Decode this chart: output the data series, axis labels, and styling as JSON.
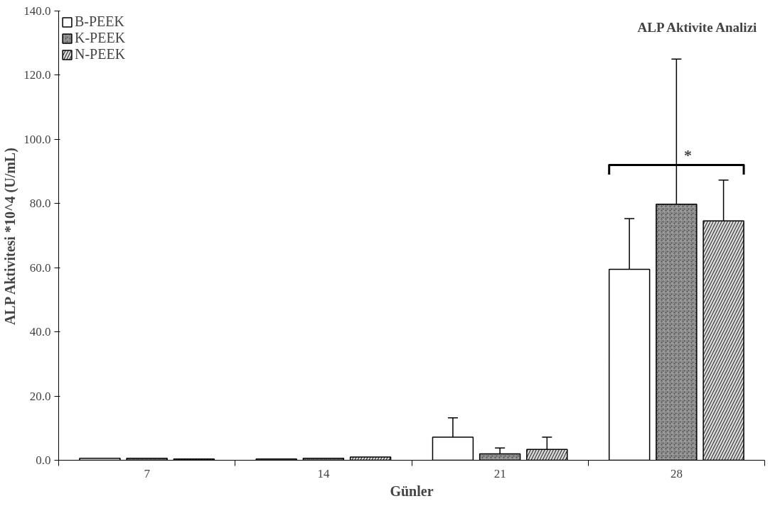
{
  "chart_data": {
    "type": "bar",
    "title": "ALP Aktivite Analizi",
    "xlabel": "Günler",
    "ylabel": "ALP Aktivitesi *10^4 (U/mL)",
    "categories": [
      "7",
      "14",
      "21",
      "28"
    ],
    "series": [
      {
        "name": "B-PEEK",
        "color": "#ffffff",
        "values": [
          0.6,
          0.4,
          7.2,
          59.5
        ],
        "errors": [
          null,
          null,
          6.0,
          15.8
        ]
      },
      {
        "name": "K-PEEK",
        "color": "#444444",
        "values": [
          0.6,
          0.6,
          2.0,
          79.8
        ],
        "errors": [
          null,
          null,
          1.8,
          45.2
        ]
      },
      {
        "name": "N-PEEK",
        "color": "#dddddd",
        "values": [
          0.4,
          1.0,
          3.4,
          74.6
        ],
        "errors": [
          null,
          null,
          3.8,
          12.7
        ]
      }
    ],
    "ylim": [
      0,
      140
    ],
    "yticks": [
      {
        "value": 0,
        "label": "0.0"
      },
      {
        "value": 20,
        "label": "20.0"
      },
      {
        "value": 40,
        "label": "40.0"
      },
      {
        "value": 60,
        "label": "60.0"
      },
      {
        "value": 80,
        "label": "80.0"
      },
      {
        "value": 100,
        "label": "100.0"
      },
      {
        "value": 120,
        "label": "120.0"
      },
      {
        "value": 140,
        "label": "140.0"
      }
    ],
    "annotations": [
      {
        "text": "*",
        "x": "28",
        "y": 92
      }
    ],
    "grid": false,
    "legend": "top left"
  }
}
